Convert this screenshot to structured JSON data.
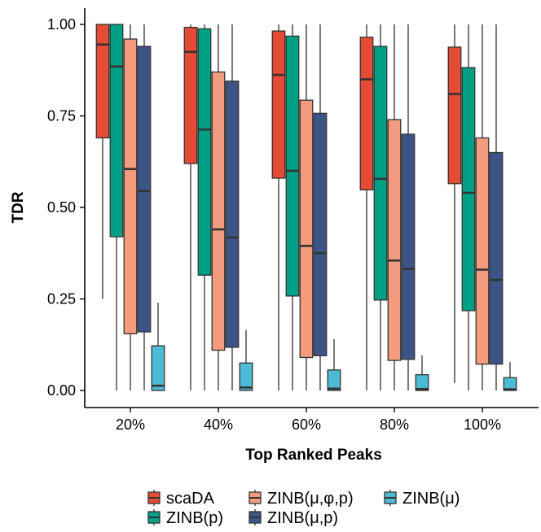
{
  "chart_data": {
    "type": "boxplot",
    "xlabel": "Top Ranked Peaks",
    "ylabel": "TDR",
    "ylim": [
      0,
      1
    ],
    "yticks": [
      "0.00",
      "0.25",
      "0.50",
      "0.75",
      "1.00"
    ],
    "categories": [
      "20%",
      "40%",
      "60%",
      "80%",
      "100%"
    ],
    "legend_position": "bottom",
    "series": [
      {
        "name": "scaDA",
        "color": "#E64B35",
        "boxes": [
          {
            "min": 0.25,
            "q1": 0.69,
            "median": 0.945,
            "q3": 1.0,
            "max": 1.0
          },
          {
            "min": 0.0,
            "q1": 0.62,
            "median": 0.925,
            "q3": 0.992,
            "max": 1.0
          },
          {
            "min": 0.0,
            "q1": 0.58,
            "median": 0.862,
            "q3": 0.982,
            "max": 1.0
          },
          {
            "min": 0.0,
            "q1": 0.548,
            "median": 0.85,
            "q3": 0.965,
            "max": 1.0
          },
          {
            "min": 0.02,
            "q1": 0.565,
            "median": 0.81,
            "q3": 0.938,
            "max": 1.0
          }
        ]
      },
      {
        "name": "ZINB(p)",
        "color": "#00A087",
        "boxes": [
          {
            "min": 0.0,
            "q1": 0.42,
            "median": 0.885,
            "q3": 1.0,
            "max": 1.0
          },
          {
            "min": 0.0,
            "q1": 0.315,
            "median": 0.713,
            "q3": 0.988,
            "max": 1.0
          },
          {
            "min": 0.0,
            "q1": 0.258,
            "median": 0.6,
            "q3": 0.968,
            "max": 1.0
          },
          {
            "min": 0.0,
            "q1": 0.247,
            "median": 0.578,
            "q3": 0.94,
            "max": 1.0
          },
          {
            "min": 0.0,
            "q1": 0.218,
            "median": 0.54,
            "q3": 0.882,
            "max": 1.0
          }
        ]
      },
      {
        "name": "ZINB(μ,φ,p)",
        "color": "#F39B7F",
        "boxes": [
          {
            "min": 0.0,
            "q1": 0.155,
            "median": 0.605,
            "q3": 0.96,
            "max": 1.0
          },
          {
            "min": 0.0,
            "q1": 0.11,
            "median": 0.44,
            "q3": 0.87,
            "max": 1.0
          },
          {
            "min": 0.0,
            "q1": 0.09,
            "median": 0.395,
            "q3": 0.793,
            "max": 1.0
          },
          {
            "min": 0.0,
            "q1": 0.082,
            "median": 0.355,
            "q3": 0.74,
            "max": 1.0
          },
          {
            "min": 0.0,
            "q1": 0.072,
            "median": 0.33,
            "q3": 0.69,
            "max": 1.0
          }
        ]
      },
      {
        "name": "ZINB(μ,p)",
        "color": "#3C5488",
        "boxes": [
          {
            "min": 0.0,
            "q1": 0.16,
            "median": 0.545,
            "q3": 0.94,
            "max": 1.0
          },
          {
            "min": 0.0,
            "q1": 0.118,
            "median": 0.418,
            "q3": 0.845,
            "max": 1.0
          },
          {
            "min": 0.0,
            "q1": 0.095,
            "median": 0.375,
            "q3": 0.757,
            "max": 1.0
          },
          {
            "min": 0.0,
            "q1": 0.085,
            "median": 0.332,
            "q3": 0.7,
            "max": 1.0
          },
          {
            "min": 0.0,
            "q1": 0.072,
            "median": 0.302,
            "q3": 0.65,
            "max": 1.0
          }
        ]
      },
      {
        "name": "ZINB(μ)",
        "color": "#4DBBD5",
        "boxes": [
          {
            "min": 0.0,
            "q1": 0.0,
            "median": 0.013,
            "q3": 0.122,
            "max": 0.24
          },
          {
            "min": 0.0,
            "q1": 0.0,
            "median": 0.008,
            "q3": 0.075,
            "max": 0.165
          },
          {
            "min": 0.0,
            "q1": 0.0,
            "median": 0.005,
            "q3": 0.056,
            "max": 0.14
          },
          {
            "min": 0.0,
            "q1": 0.0,
            "median": 0.004,
            "q3": 0.043,
            "max": 0.096
          },
          {
            "min": 0.0,
            "q1": 0.0,
            "median": 0.003,
            "q3": 0.035,
            "max": 0.078
          }
        ]
      }
    ]
  }
}
